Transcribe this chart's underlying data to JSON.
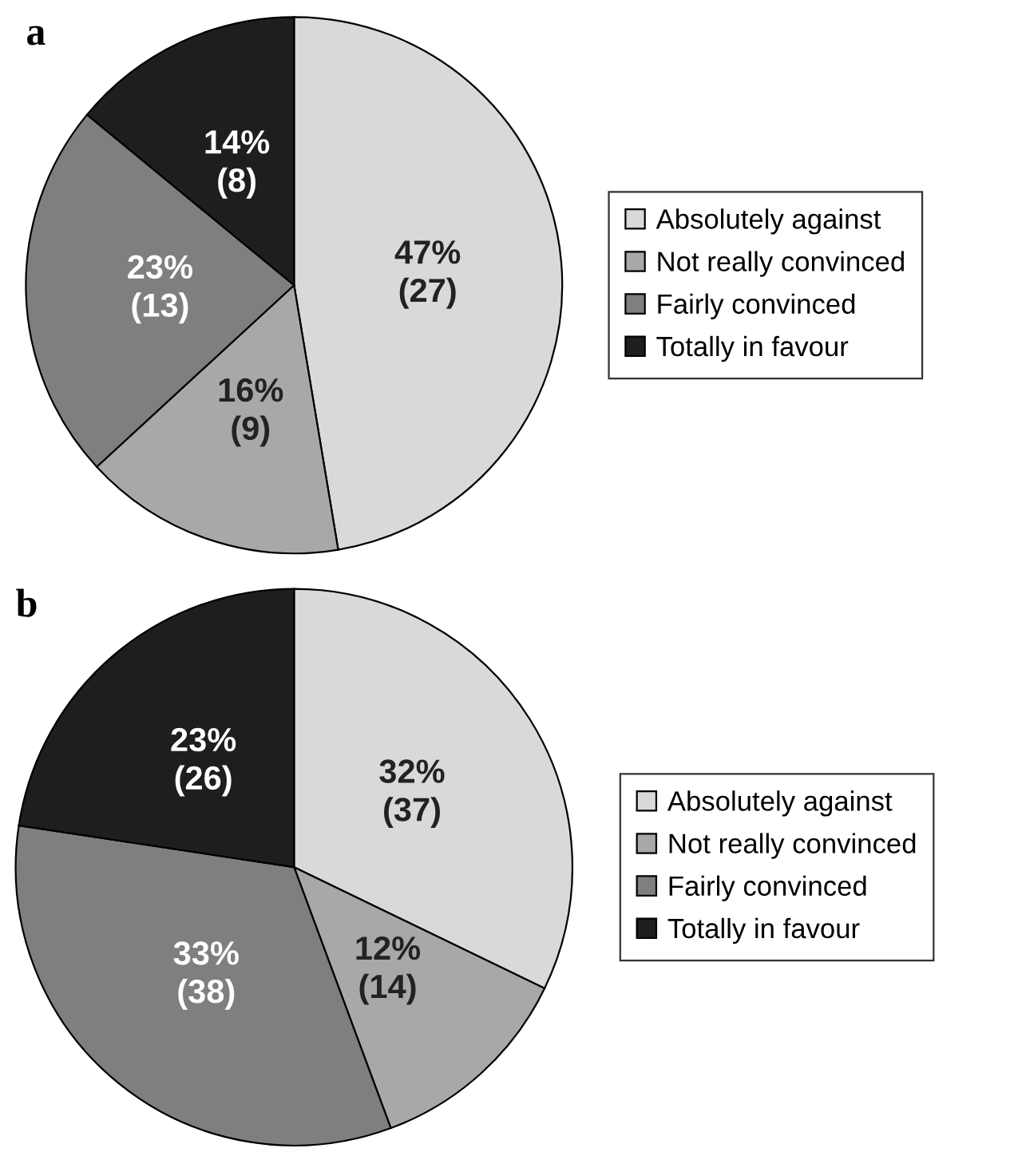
{
  "chart_data": [
    {
      "type": "pie",
      "title": "a",
      "categories": [
        "Absolutely against",
        "Not really convinced",
        "Fairly convinced",
        "Totally in favour"
      ],
      "values": [
        27,
        9,
        13,
        8
      ],
      "value_labels": [
        "47%\n(27)",
        "16%\n(9)",
        "23%\n(13)",
        "14%\n(8)"
      ],
      "colors": [
        "#d9d9d9",
        "#a8a8a8",
        "#7f7f7f",
        "#1e1e1e"
      ],
      "legend": "right"
    },
    {
      "type": "pie",
      "title": "b",
      "categories": [
        "Absolutely against",
        "Not really convinced",
        "Fairly convinced",
        "Totally in favour"
      ],
      "values": [
        37,
        14,
        38,
        26
      ],
      "value_labels": [
        "32%\n(37)",
        "12%\n(14)",
        "33%\n(38)",
        "23%\n(26)"
      ],
      "colors": [
        "#d9d9d9",
        "#a8a8a8",
        "#7f7f7f",
        "#1e1e1e"
      ],
      "legend": "right"
    }
  ]
}
